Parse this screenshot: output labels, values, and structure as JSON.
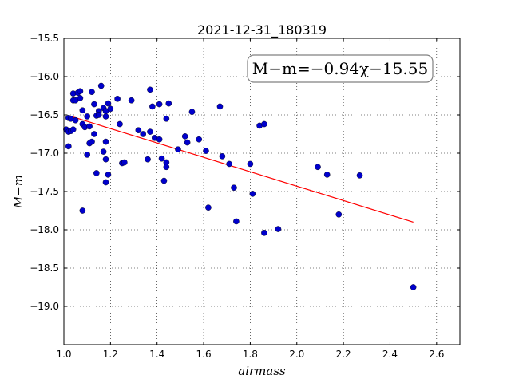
{
  "chart_data": {
    "type": "scatter",
    "title": "2021-12-31_180319",
    "xlabel": "airmass",
    "ylabel": "M−m",
    "xlim": [
      1.0,
      2.7
    ],
    "ylim": [
      -19.5,
      -15.5
    ],
    "y_inverted": true,
    "grid": true,
    "x_ticks": [
      "1.0",
      "1.2",
      "1.4",
      "1.6",
      "1.8",
      "2.0",
      "2.2",
      "2.4",
      "2.6"
    ],
    "y_ticks": [
      "−15.5",
      "−16.0",
      "−16.5",
      "−17.0",
      "−17.5",
      "−18.0",
      "−18.5",
      "−19.0"
    ],
    "annotation": "M−m=−0.94χ−15.55",
    "fit": {
      "slope": -0.94,
      "intercept": -15.55,
      "x_range": [
        1.02,
        2.5
      ],
      "color": "#ff0000"
    },
    "point_color": "#0000cc",
    "points": [
      [
        1.01,
        -16.69
      ],
      [
        1.02,
        -16.72
      ],
      [
        1.02,
        -16.91
      ],
      [
        1.02,
        -16.54
      ],
      [
        1.03,
        -16.55
      ],
      [
        1.03,
        -16.71
      ],
      [
        1.04,
        -16.69
      ],
      [
        1.04,
        -16.31
      ],
      [
        1.04,
        -16.22
      ],
      [
        1.05,
        -16.57
      ],
      [
        1.05,
        -16.31
      ],
      [
        1.06,
        -16.21
      ],
      [
        1.07,
        -16.19
      ],
      [
        1.07,
        -16.28
      ],
      [
        1.08,
        -16.44
      ],
      [
        1.08,
        -16.62
      ],
      [
        1.08,
        -17.75
      ],
      [
        1.09,
        -16.66
      ],
      [
        1.1,
        -16.52
      ],
      [
        1.1,
        -17.02
      ],
      [
        1.11,
        -16.65
      ],
      [
        1.11,
        -16.87
      ],
      [
        1.12,
        -16.85
      ],
      [
        1.12,
        -16.2
      ],
      [
        1.13,
        -16.36
      ],
      [
        1.13,
        -16.75
      ],
      [
        1.14,
        -16.51
      ],
      [
        1.14,
        -17.26
      ],
      [
        1.15,
        -16.45
      ],
      [
        1.15,
        -16.5
      ],
      [
        1.16,
        -16.12
      ],
      [
        1.17,
        -16.98
      ],
      [
        1.17,
        -16.41
      ],
      [
        1.18,
        -16.45
      ],
      [
        1.18,
        -16.52
      ],
      [
        1.18,
        -16.85
      ],
      [
        1.18,
        -17.08
      ],
      [
        1.18,
        -17.38
      ],
      [
        1.19,
        -16.35
      ],
      [
        1.19,
        -17.28
      ],
      [
        1.2,
        -16.42
      ],
      [
        1.23,
        -16.29
      ],
      [
        1.24,
        -16.62
      ],
      [
        1.25,
        -17.13
      ],
      [
        1.26,
        -17.12
      ],
      [
        1.29,
        -16.31
      ],
      [
        1.32,
        -16.7
      ],
      [
        1.34,
        -16.75
      ],
      [
        1.36,
        -17.08
      ],
      [
        1.37,
        -16.17
      ],
      [
        1.37,
        -16.72
      ],
      [
        1.38,
        -16.39
      ],
      [
        1.39,
        -16.8
      ],
      [
        1.41,
        -16.36
      ],
      [
        1.41,
        -16.82
      ],
      [
        1.42,
        -17.07
      ],
      [
        1.43,
        -17.36
      ],
      [
        1.44,
        -16.55
      ],
      [
        1.44,
        -17.12
      ],
      [
        1.44,
        -17.18
      ],
      [
        1.45,
        -16.35
      ],
      [
        1.49,
        -16.95
      ],
      [
        1.52,
        -16.78
      ],
      [
        1.53,
        -16.86
      ],
      [
        1.55,
        -16.46
      ],
      [
        1.58,
        -16.82
      ],
      [
        1.61,
        -16.97
      ],
      [
        1.62,
        -17.71
      ],
      [
        1.67,
        -16.39
      ],
      [
        1.68,
        -17.04
      ],
      [
        1.71,
        -17.14
      ],
      [
        1.73,
        -17.45
      ],
      [
        1.74,
        -17.89
      ],
      [
        1.8,
        -17.14
      ],
      [
        1.81,
        -17.53
      ],
      [
        1.84,
        -16.64
      ],
      [
        1.86,
        -16.62
      ],
      [
        1.86,
        -18.04
      ],
      [
        1.92,
        -17.99
      ],
      [
        2.09,
        -17.18
      ],
      [
        2.13,
        -17.28
      ],
      [
        2.18,
        -17.8
      ],
      [
        2.27,
        -17.29
      ],
      [
        2.5,
        -18.75
      ]
    ]
  }
}
